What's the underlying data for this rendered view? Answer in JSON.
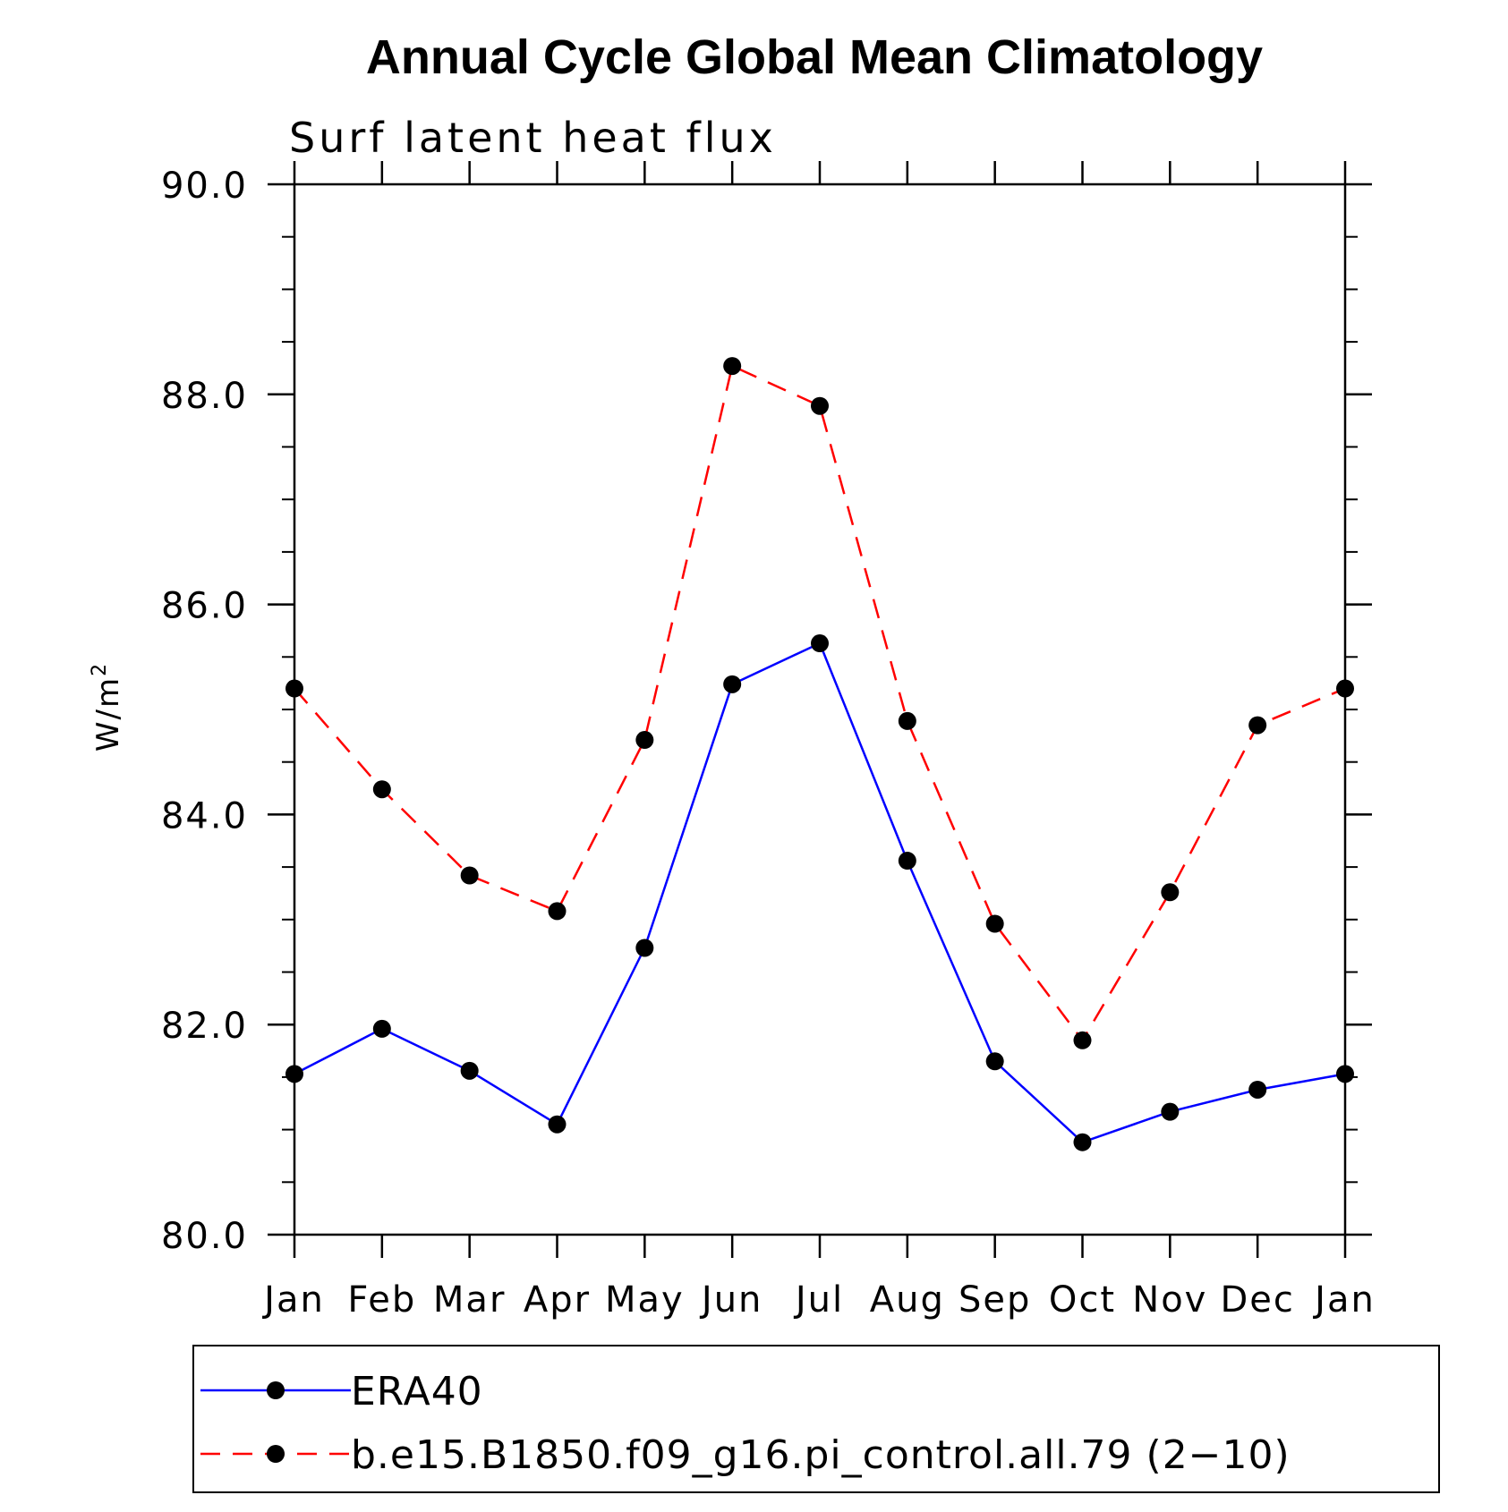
{
  "chart_data": {
    "type": "line",
    "title": "Annual Cycle Global Mean Climatology",
    "subtitle": "Surf latent heat flux",
    "xlabel": "",
    "ylabel": "W/m",
    "ylabel_superscript": "2",
    "ylim": [
      80.0,
      90.0
    ],
    "y_major_ticks": [
      "80.0",
      "82.0",
      "84.0",
      "86.0",
      "88.0",
      "90.0"
    ],
    "y_minor_step": 0.5,
    "categories": [
      "Jan",
      "Feb",
      "Mar",
      "Apr",
      "May",
      "Jun",
      "Jul",
      "Aug",
      "Sep",
      "Oct",
      "Nov",
      "Dec",
      "Jan"
    ],
    "grid": false,
    "legend_position": "bottom",
    "series": [
      {
        "name": "ERA40",
        "color": "#0000ff",
        "dash": "solid",
        "marker": "filled-circle",
        "values": [
          81.53,
          81.96,
          81.56,
          81.05,
          82.73,
          85.24,
          85.63,
          83.56,
          81.65,
          80.88,
          81.17,
          81.38,
          81.53
        ]
      },
      {
        "name": "b.e15.B1850.f09_g16.pi_control.all.79 (2−10)",
        "color": "#ff0000",
        "dash": "dashed",
        "marker": "filled-circle",
        "values": [
          85.2,
          84.24,
          83.42,
          83.08,
          84.71,
          88.27,
          87.89,
          84.89,
          82.96,
          81.85,
          83.26,
          84.85,
          85.2
        ]
      }
    ]
  }
}
